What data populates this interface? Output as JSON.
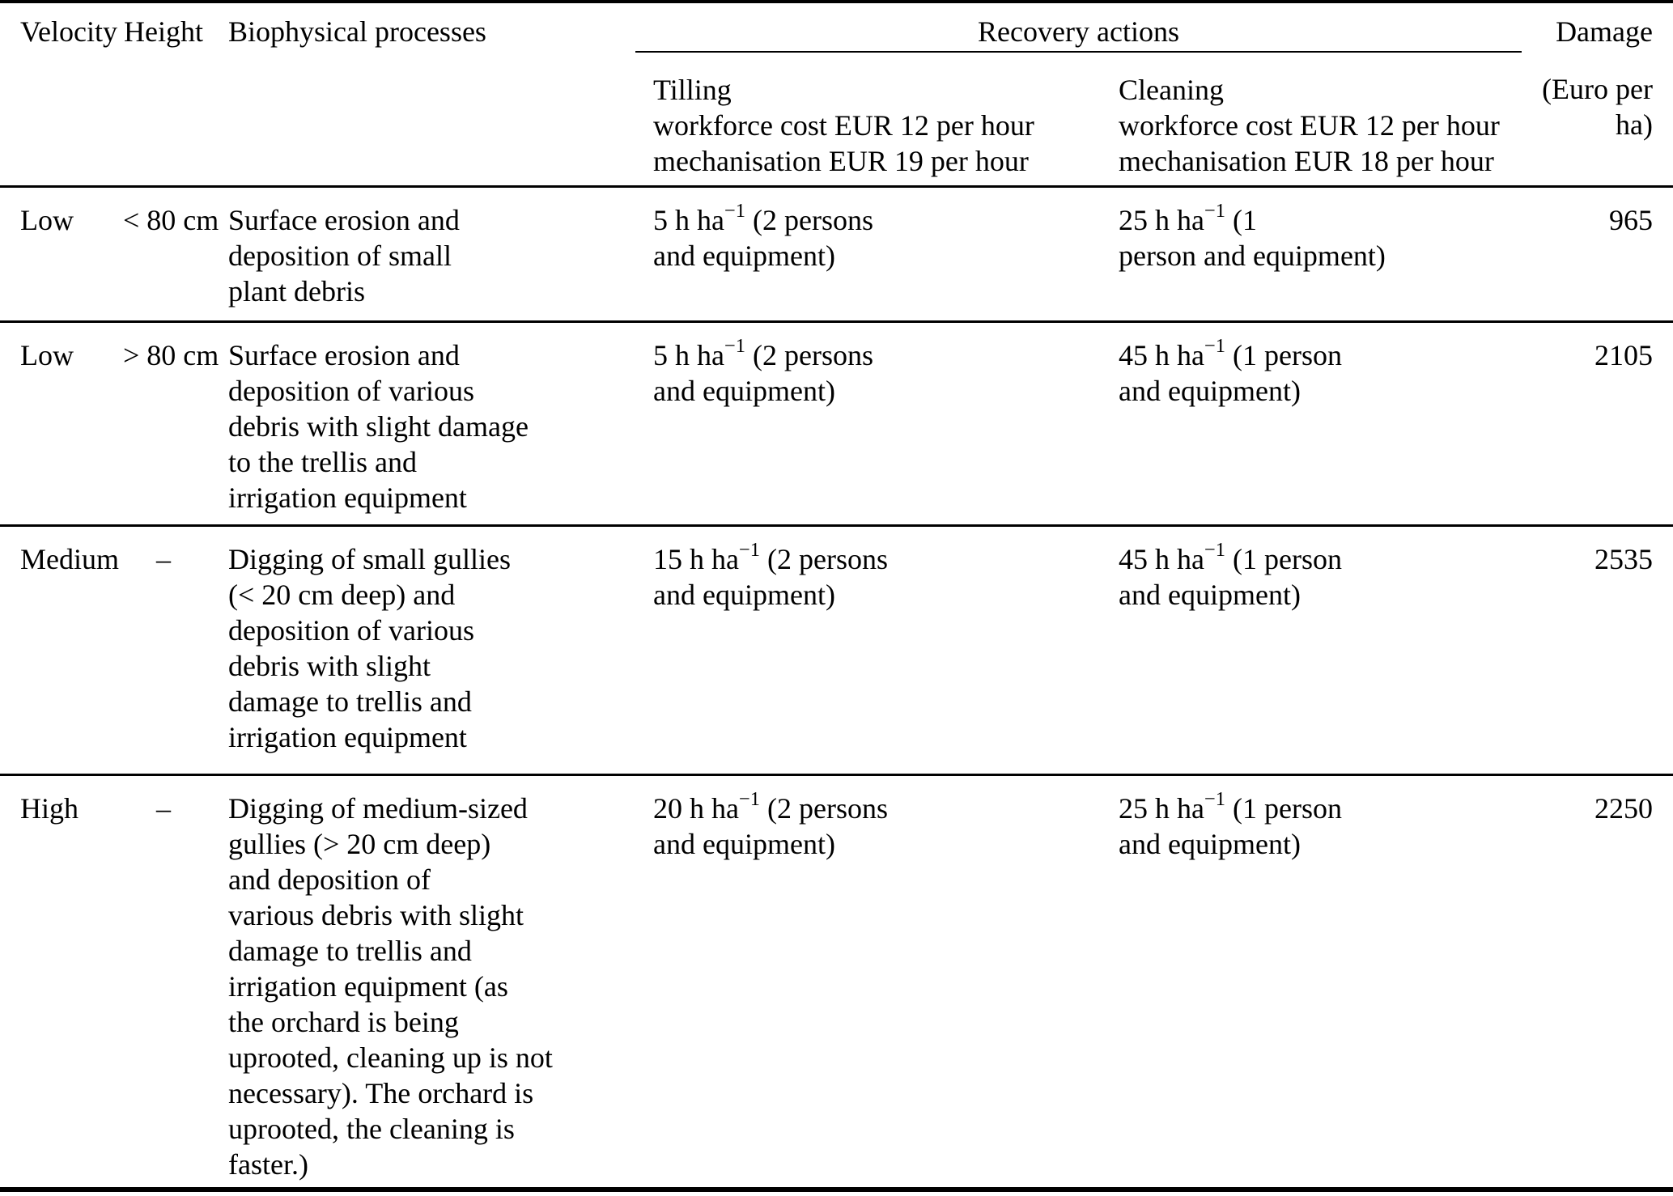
{
  "table": {
    "header": {
      "velocity": "Velocity",
      "height": "Height",
      "biophysical": "Biophysical processes",
      "recovery": "Recovery actions",
      "damage": "Damage",
      "tilling_html": "Tilling<br>workforce cost EUR 12 per hour<br>mechanisation EUR 19 per hour",
      "cleaning_html": "Cleaning<br>workforce cost EUR 12 per hour<br>mechanisation EUR 18 per hour",
      "damage_unit_html": "(Euro per<br>ha)"
    },
    "rows": [
      {
        "velocity": "Low",
        "height": "< 80 cm",
        "biophysical_html": "Surface erosion and<br>deposition of small<br>plant debris",
        "tilling_html": "5 h ha<sup>−1</sup> (2 persons<br>and equipment)",
        "cleaning_html": "25 h ha<sup>−1</sup> (1<br>person and equipment)",
        "damage": "965"
      },
      {
        "velocity": "Low",
        "height": "> 80 cm",
        "biophysical_html": "Surface erosion and<br>deposition of various<br>debris with slight damage<br>to the trellis and<br>irrigation equipment",
        "tilling_html": "5 h ha<sup>−1</sup> (2 persons<br>and equipment)",
        "cleaning_html": "45 h ha<sup>−1</sup> (1 person<br>and equipment)",
        "damage": "2105"
      },
      {
        "velocity": "Medium",
        "height": "–",
        "biophysical_html": "Digging of small gullies<br>(&lt; 20 cm deep) and<br>deposition of various<br>debris with slight<br>damage to trellis and<br>irrigation equipment",
        "tilling_html": "15 h ha<sup>−1</sup> (2 persons<br>and equipment)",
        "cleaning_html": "45 h ha<sup>−1</sup> (1 person<br>and equipment)",
        "damage": "2535"
      },
      {
        "velocity": "High",
        "height": "–",
        "biophysical_html": "Digging of medium-sized<br>gullies (&gt; 20 cm deep)<br>and deposition of<br>various debris with slight<br>damage to trellis and<br>irrigation equipment (as<br>the orchard is being<br>uprooted, cleaning up is not<br>necessary). The orchard is<br>uprooted, the cleaning is<br>faster.)",
        "tilling_html": "20 h ha<sup>−1</sup> (2 persons<br>and equipment)",
        "cleaning_html": "25 h ha<sup>−1</sup> (1 person<br>and equipment)",
        "damage": "2250"
      }
    ]
  }
}
